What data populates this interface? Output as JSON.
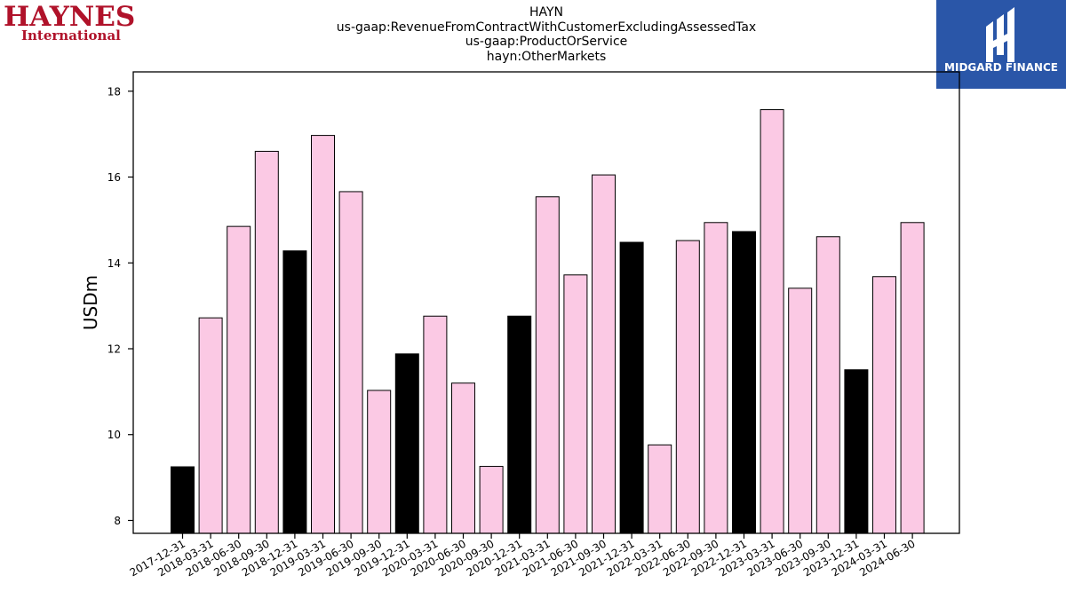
{
  "logos": {
    "left_line1": "HAYNES",
    "left_line2": "International",
    "right_text": "MIDGARD FINANCE"
  },
  "title_lines": [
    "HAYN",
    "us-gaap:RevenueFromContractWithCustomerExcludingAssessedTax",
    "us-gaap:ProductOrService",
    "hayn:OtherMarkets"
  ],
  "colors": {
    "quarter_fill": "#fbc9e4",
    "year_end_fill": "#000000",
    "axis": "#000000"
  },
  "chart_data": {
    "type": "bar",
    "ylabel": "USDm",
    "xlabel": "",
    "ylim": [
      7.7,
      18.45
    ],
    "yticks": [
      8,
      10,
      12,
      14,
      16,
      18
    ],
    "grid": false,
    "categories": [
      "2017-12-31",
      "2018-03-31",
      "2018-06-30",
      "2018-09-30",
      "2018-12-31",
      "2019-03-31",
      "2019-06-30",
      "2019-09-30",
      "2019-12-31",
      "2020-03-31",
      "2020-06-30",
      "2020-09-30",
      "2020-12-31",
      "2021-03-31",
      "2021-06-30",
      "2021-09-30",
      "2021-12-31",
      "2022-03-31",
      "2022-06-30",
      "2022-09-30",
      "2022-12-31",
      "2023-03-31",
      "2023-06-30",
      "2023-09-30",
      "2023-12-31",
      "2024-03-31",
      "2024-06-30"
    ],
    "values": [
      9.25,
      12.72,
      14.85,
      16.6,
      14.28,
      16.97,
      15.66,
      11.03,
      11.88,
      12.76,
      11.2,
      9.26,
      12.76,
      15.54,
      13.72,
      16.05,
      14.48,
      9.76,
      14.52,
      14.94,
      14.73,
      17.57,
      13.41,
      14.61,
      11.51,
      13.68,
      14.94
    ],
    "year_end": [
      true,
      false,
      false,
      false,
      true,
      false,
      false,
      false,
      true,
      false,
      false,
      false,
      true,
      false,
      false,
      false,
      true,
      false,
      false,
      false,
      true,
      false,
      false,
      false,
      true,
      false,
      false
    ]
  }
}
